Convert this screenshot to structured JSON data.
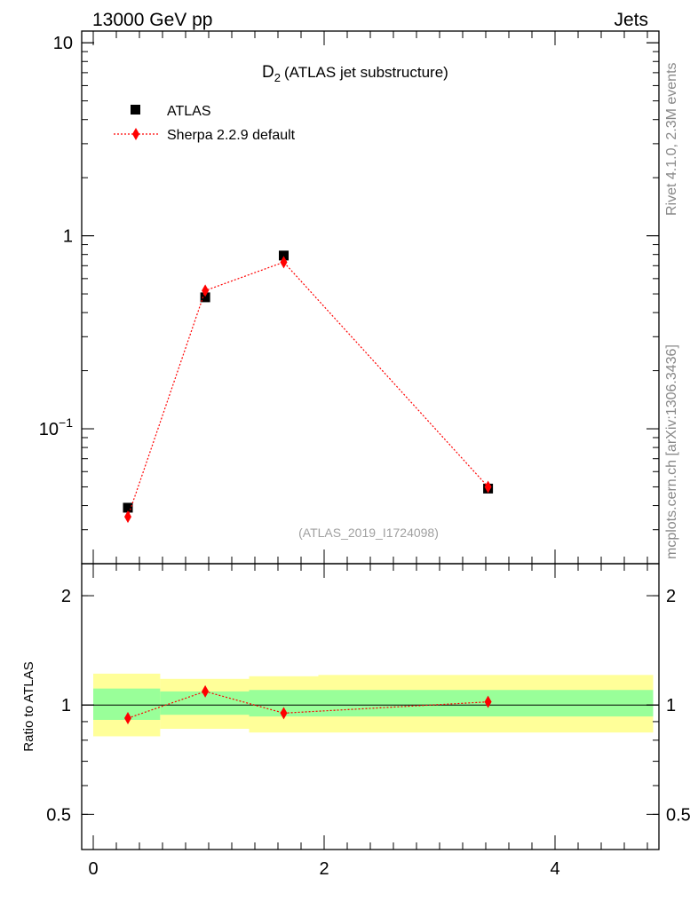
{
  "header": {
    "left": "13000 GeV pp",
    "right": "Jets"
  },
  "title": {
    "main": "D",
    "sub": "2",
    "rest": "(ATLAS jet substructure)"
  },
  "side_labels": {
    "rivet": "Rivet 4.1.0,  2.3M events",
    "mcplots": "mcplots.cern.ch [arXiv:1306.3436]"
  },
  "watermark": "(ATLAS_2019_I1724098)",
  "legend": [
    {
      "label": "ATLAS",
      "marker": "square",
      "color": "#000000"
    },
    {
      "label": "Sherpa 2.2.9 default",
      "marker": "diamond",
      "color": "#ff0000"
    }
  ],
  "chart_data": [
    {
      "type": "scatter",
      "yscale": "log",
      "ylim": [
        0.02,
        11.5
      ],
      "xlim": [
        -0.1,
        4.9
      ],
      "y_tick_labels": [
        {
          "value": 0.1,
          "base": "10",
          "exp": "−1"
        },
        {
          "value": 1,
          "base": "1",
          "exp": ""
        },
        {
          "value": 10,
          "base": "10",
          "exp": ""
        }
      ],
      "series": [
        {
          "name": "ATLAS",
          "color": "#000000",
          "marker": "square",
          "x": [
            0.3,
            0.97,
            1.65,
            3.42
          ],
          "y": [
            0.039,
            0.48,
            0.79,
            0.049
          ]
        },
        {
          "name": "Sherpa 2.2.9 default",
          "color": "#ff0000",
          "marker": "diamond",
          "line": "dotted",
          "x": [
            0.3,
            0.97,
            1.65,
            3.42
          ],
          "y": [
            0.035,
            0.52,
            0.73,
            0.05
          ]
        }
      ]
    },
    {
      "type": "scatter",
      "ylabel": "Ratio to ATLAS",
      "yscale": "log",
      "ylim": [
        0.4,
        2.45
      ],
      "xlim": [
        -0.1,
        4.9
      ],
      "x_ticks": [
        0,
        2,
        4
      ],
      "y_tick_labels": [
        {
          "value": 0.5,
          "label": "0.5"
        },
        {
          "value": 1,
          "label": "1"
        },
        {
          "value": 2,
          "label": "2"
        }
      ],
      "reference_line": 1,
      "bands": [
        {
          "x0": 0.0,
          "x1": 0.58,
          "yellow": [
            0.82,
            1.22
          ],
          "green": [
            0.91,
            1.11
          ]
        },
        {
          "x0": 0.58,
          "x1": 1.35,
          "yellow": [
            0.86,
            1.18
          ],
          "green": [
            0.94,
            1.09
          ]
        },
        {
          "x0": 1.35,
          "x1": 1.95,
          "yellow": [
            0.84,
            1.2
          ],
          "green": [
            0.93,
            1.1
          ]
        },
        {
          "x0": 1.95,
          "x1": 4.85,
          "yellow": [
            0.84,
            1.21
          ],
          "green": [
            0.93,
            1.1
          ]
        }
      ],
      "series": [
        {
          "name": "Sherpa 2.2.9 default",
          "color": "#ff0000",
          "marker": "diamond",
          "line": "dotted",
          "x": [
            0.3,
            0.97,
            1.65,
            3.42
          ],
          "y": [
            0.92,
            1.09,
            0.95,
            1.02
          ]
        }
      ]
    }
  ]
}
